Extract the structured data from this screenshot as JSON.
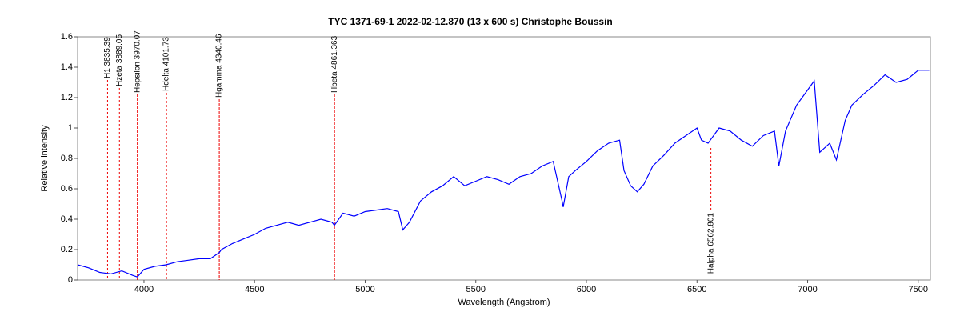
{
  "chart_data": {
    "type": "line",
    "title": "TYC 1371-69-1   2022-02-12.870   (13 x 600 s)   Christophe Boussin",
    "x_label": "Wavelength (Angstrom)",
    "y_label": "Relative intensity",
    "color": "#0000ff",
    "xlim": [
      3700,
      7555
    ],
    "ylim": [
      0,
      1.6
    ],
    "xticks": [
      4000,
      4500,
      5000,
      5500,
      6000,
      6500,
      7000,
      7500
    ],
    "yticks": [
      0,
      0.2,
      0.4,
      0.6,
      0.8,
      1,
      1.2,
      1.4,
      1.6
    ],
    "x": [
      3700,
      3750,
      3800,
      3850,
      3900,
      3950,
      3970,
      4000,
      4050,
      4100,
      4150,
      4200,
      4250,
      4300,
      4340,
      4350,
      4400,
      4450,
      4500,
      4550,
      4600,
      4650,
      4700,
      4750,
      4800,
      4850,
      4861,
      4900,
      4950,
      5000,
      5050,
      5100,
      5150,
      5170,
      5200,
      5250,
      5300,
      5350,
      5400,
      5450,
      5500,
      5550,
      5600,
      5650,
      5700,
      5750,
      5800,
      5850,
      5890,
      5895,
      5920,
      5950,
      6000,
      6050,
      6100,
      6150,
      6170,
      6200,
      6230,
      6260,
      6300,
      6350,
      6400,
      6450,
      6500,
      6520,
      6550,
      6600,
      6650,
      6700,
      6750,
      6800,
      6850,
      6870,
      6900,
      6950,
      7000,
      7030,
      7055,
      7100,
      7130,
      7170,
      7200,
      7250,
      7300,
      7350,
      7400,
      7450,
      7500,
      7550
    ],
    "values": [
      0.1,
      0.08,
      0.05,
      0.04,
      0.06,
      0.03,
      0.02,
      0.07,
      0.09,
      0.1,
      0.12,
      0.13,
      0.14,
      0.14,
      0.18,
      0.2,
      0.24,
      0.27,
      0.3,
      0.34,
      0.36,
      0.38,
      0.36,
      0.38,
      0.4,
      0.38,
      0.36,
      0.44,
      0.42,
      0.45,
      0.46,
      0.47,
      0.45,
      0.33,
      0.38,
      0.52,
      0.58,
      0.62,
      0.68,
      0.62,
      0.65,
      0.68,
      0.66,
      0.63,
      0.68,
      0.7,
      0.75,
      0.78,
      0.52,
      0.48,
      0.68,
      0.72,
      0.78,
      0.85,
      0.9,
      0.92,
      0.72,
      0.62,
      0.58,
      0.63,
      0.75,
      0.82,
      0.9,
      0.95,
      1.0,
      0.92,
      0.9,
      1.0,
      0.98,
      0.92,
      0.88,
      0.95,
      0.98,
      0.75,
      0.98,
      1.15,
      1.25,
      1.31,
      0.84,
      0.9,
      0.79,
      1.05,
      1.15,
      1.22,
      1.28,
      1.35,
      1.3,
      1.32,
      1.38,
      1.38
    ],
    "annotations": [
      {
        "label": "H1 3835.39",
        "x": 3835.39
      },
      {
        "label": "Hzeta 3889.05",
        "x": 3889.05
      },
      {
        "label": "Hepsilon 3970.07",
        "x": 3970.07
      },
      {
        "label": "Hdelta 4101.73",
        "x": 4101.73
      },
      {
        "label": "Hgamma 4340.46",
        "x": 4340.46
      },
      {
        "label": "Hbeta 4861.363",
        "x": 4861.363
      },
      {
        "label": "Halpha 6562.801",
        "x": 6562.801
      }
    ]
  }
}
